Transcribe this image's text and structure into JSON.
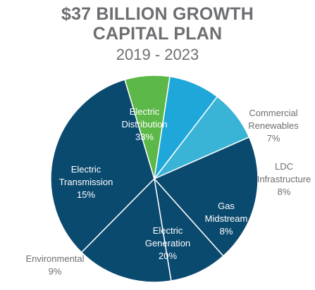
{
  "header": {
    "title_line1": "$37 BILLION GROWTH",
    "title_line2": "CAPITAL PLAN",
    "subtitle": "2019 - 2023"
  },
  "chart_data": {
    "type": "pie",
    "title": "$37 BILLION GROWTH CAPITAL PLAN",
    "subtitle": "2019 - 2023",
    "slices": [
      {
        "label_lines": [
          "Electric",
          "Distribution",
          "33%"
        ],
        "value": 33,
        "color": "#0b4a6f",
        "label_color": "#ffffff"
      },
      {
        "label_lines": [
          "Commercial",
          "Renewables",
          "7%"
        ],
        "value": 7,
        "color": "#5cb848",
        "label_color": "#6d6e71"
      },
      {
        "label_lines": [
          "LDC",
          "Infrastructure",
          "8%"
        ],
        "value": 8,
        "color": "#1fa7d9",
        "label_color": "#6d6e71"
      },
      {
        "label_lines": [
          "Gas",
          "Midstream",
          "8%"
        ],
        "value": 8,
        "color": "#3ab4d6",
        "label_color": "#ffffff"
      },
      {
        "label_lines": [
          "Electric",
          "Generation",
          "20%"
        ],
        "value": 20,
        "color": "#0b4a6f",
        "label_color": "#ffffff"
      },
      {
        "label_lines": [
          "Environmental",
          "9%"
        ],
        "value": 9,
        "color": "#0b4a6f",
        "label_color": "#6d6e71"
      },
      {
        "label_lines": [
          "Electric",
          "Transmission",
          "15%"
        ],
        "value": 15,
        "color": "#0b4a6f",
        "label_color": "#ffffff"
      }
    ]
  }
}
